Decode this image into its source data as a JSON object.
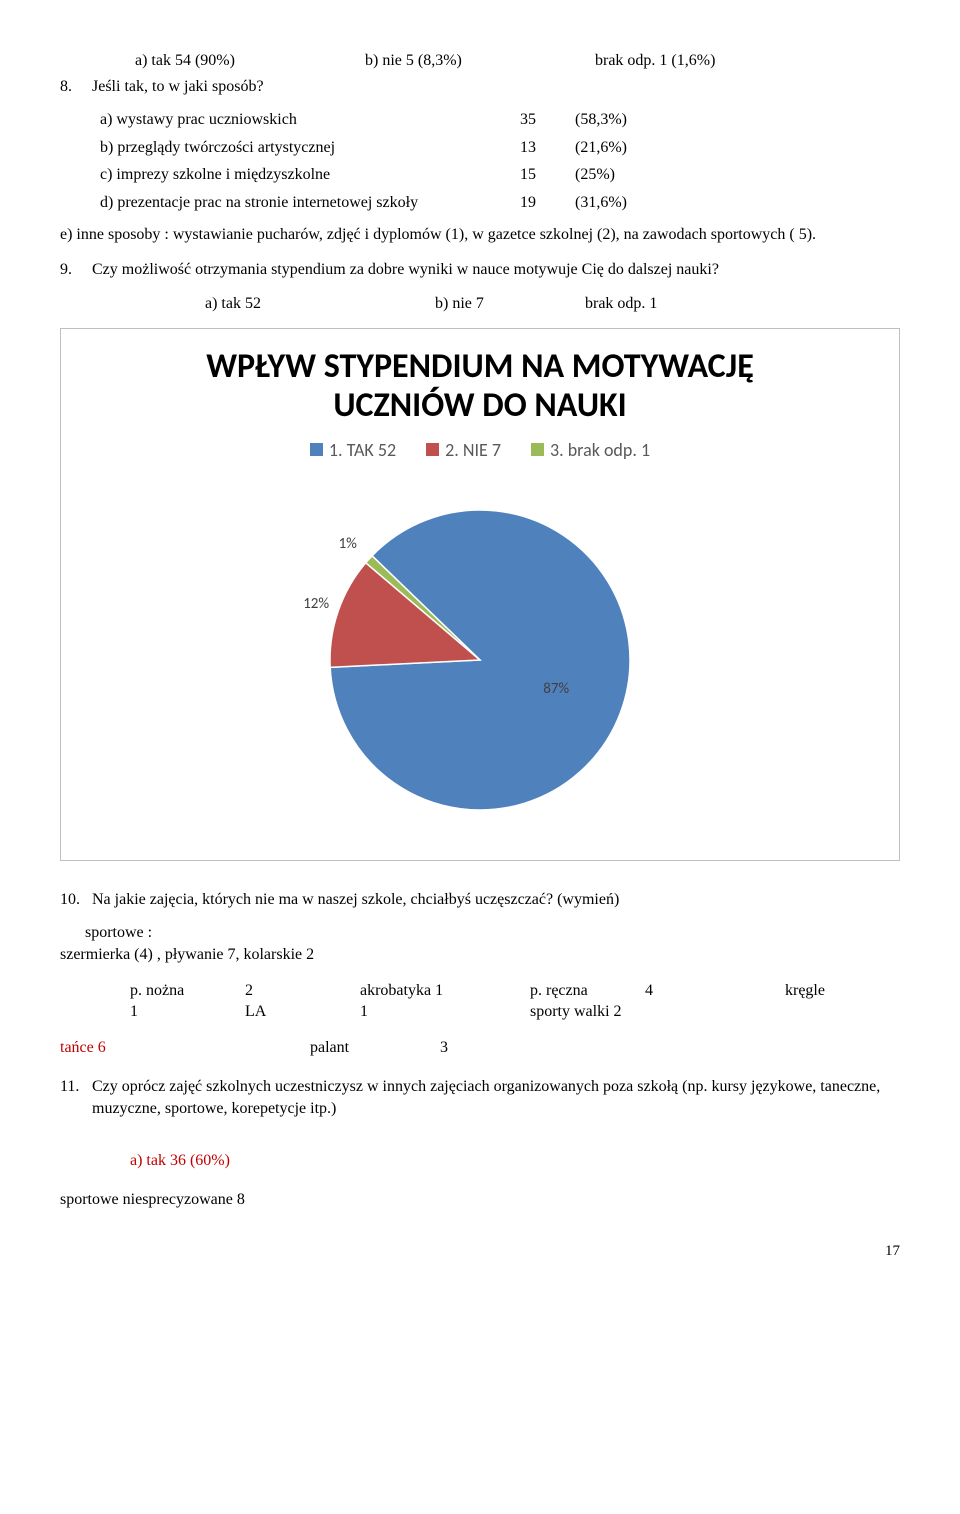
{
  "line1": {
    "a": "a) tak   54       (90%)",
    "b": "b) nie 5 (8,3%)",
    "c": "brak odp. 1 (1,6%)"
  },
  "q8": {
    "num": "8.",
    "text": "Jeśli tak, to w jaki sposób?"
  },
  "tbl": {
    "r1": {
      "lbl": "a) wystawy prac uczniowskich",
      "c1": "35",
      "c2": "(58,3%)"
    },
    "r2": {
      "lbl": "b) przeglądy twórczości artystycznej",
      "c1": "13",
      "c2": "(21,6%)"
    },
    "r3": {
      "lbl": "c) imprezy szkolne i międzyszkolne",
      "c1": "15",
      "c2": "(25%)"
    },
    "r4": {
      "lbl": "d) prezentacje prac na stronie internetowej szkoły",
      "c1": "19",
      "c2": "(31,6%)"
    }
  },
  "e_line": "e) inne sposoby : wystawianie pucharów, zdjęć i dyplomów (1), w gazetce szkolnej (2), na zawodach sportowych ( 5).",
  "q9": {
    "num": "9.",
    "text": "Czy możliwość otrzymania stypendium za dobre wyniki w nauce motywuje Cię do dalszej nauki?",
    "a": "a) tak   52",
    "b": "b) nie 7",
    "c": "brak odp. 1"
  },
  "chart": {
    "title1": "WPŁYW STYPENDIUM NA MOTYWACJĘ",
    "title2": "UCZNIÓW DO NAUKI",
    "legend": [
      {
        "label": "1. TAK 52",
        "color": "#4f81bd"
      },
      {
        "label": "2. NIE 7",
        "color": "#c0504d"
      },
      {
        "label": "3. brak odp. 1",
        "color": "#9bbb59"
      }
    ],
    "slices": [
      {
        "value": 87,
        "color": "#4f81bd",
        "label": "87%"
      },
      {
        "value": 12,
        "color": "#c0504d",
        "label": "12%"
      },
      {
        "value": 1,
        "color": "#9bbb59",
        "label": "1%"
      }
    ],
    "start_angle_deg": -46,
    "radius": 150,
    "label_fontsize": 15,
    "label_color": "#404040"
  },
  "q10": {
    "num": "10.",
    "text": "Na jakie zajęcia, których nie ma w naszej szkole, chciałbyś uczęszczać? (wymień)",
    "sportowe_lbl": "sportowe :",
    "szer": "szermierka (4)  , pływanie 7, kolarskie  2",
    "row1": {
      "a": "p. nożna",
      "av": "2",
      "b": "akrobatyka 1",
      "c": "p. ręczna",
      "cv": "4",
      "d": "kręgle"
    },
    "row2": {
      "a": "1",
      "b": "LA",
      "c": "1",
      "d": "sporty walki   2"
    },
    "row3": {
      "a": "tańce   6",
      "b": "palant",
      "bv": "3"
    }
  },
  "q11": {
    "num": "11.",
    "text": "Czy oprócz zajęć szkolnych uczestniczysz w innych zajęciach organizowanych poza szkołą (np. kursy językowe, taneczne, muzyczne, sportowe, korepetycje itp.)",
    "a": "a) tak  36   (60%)"
  },
  "bottom": "sportowe niesprecyzowane 8",
  "page": "17"
}
